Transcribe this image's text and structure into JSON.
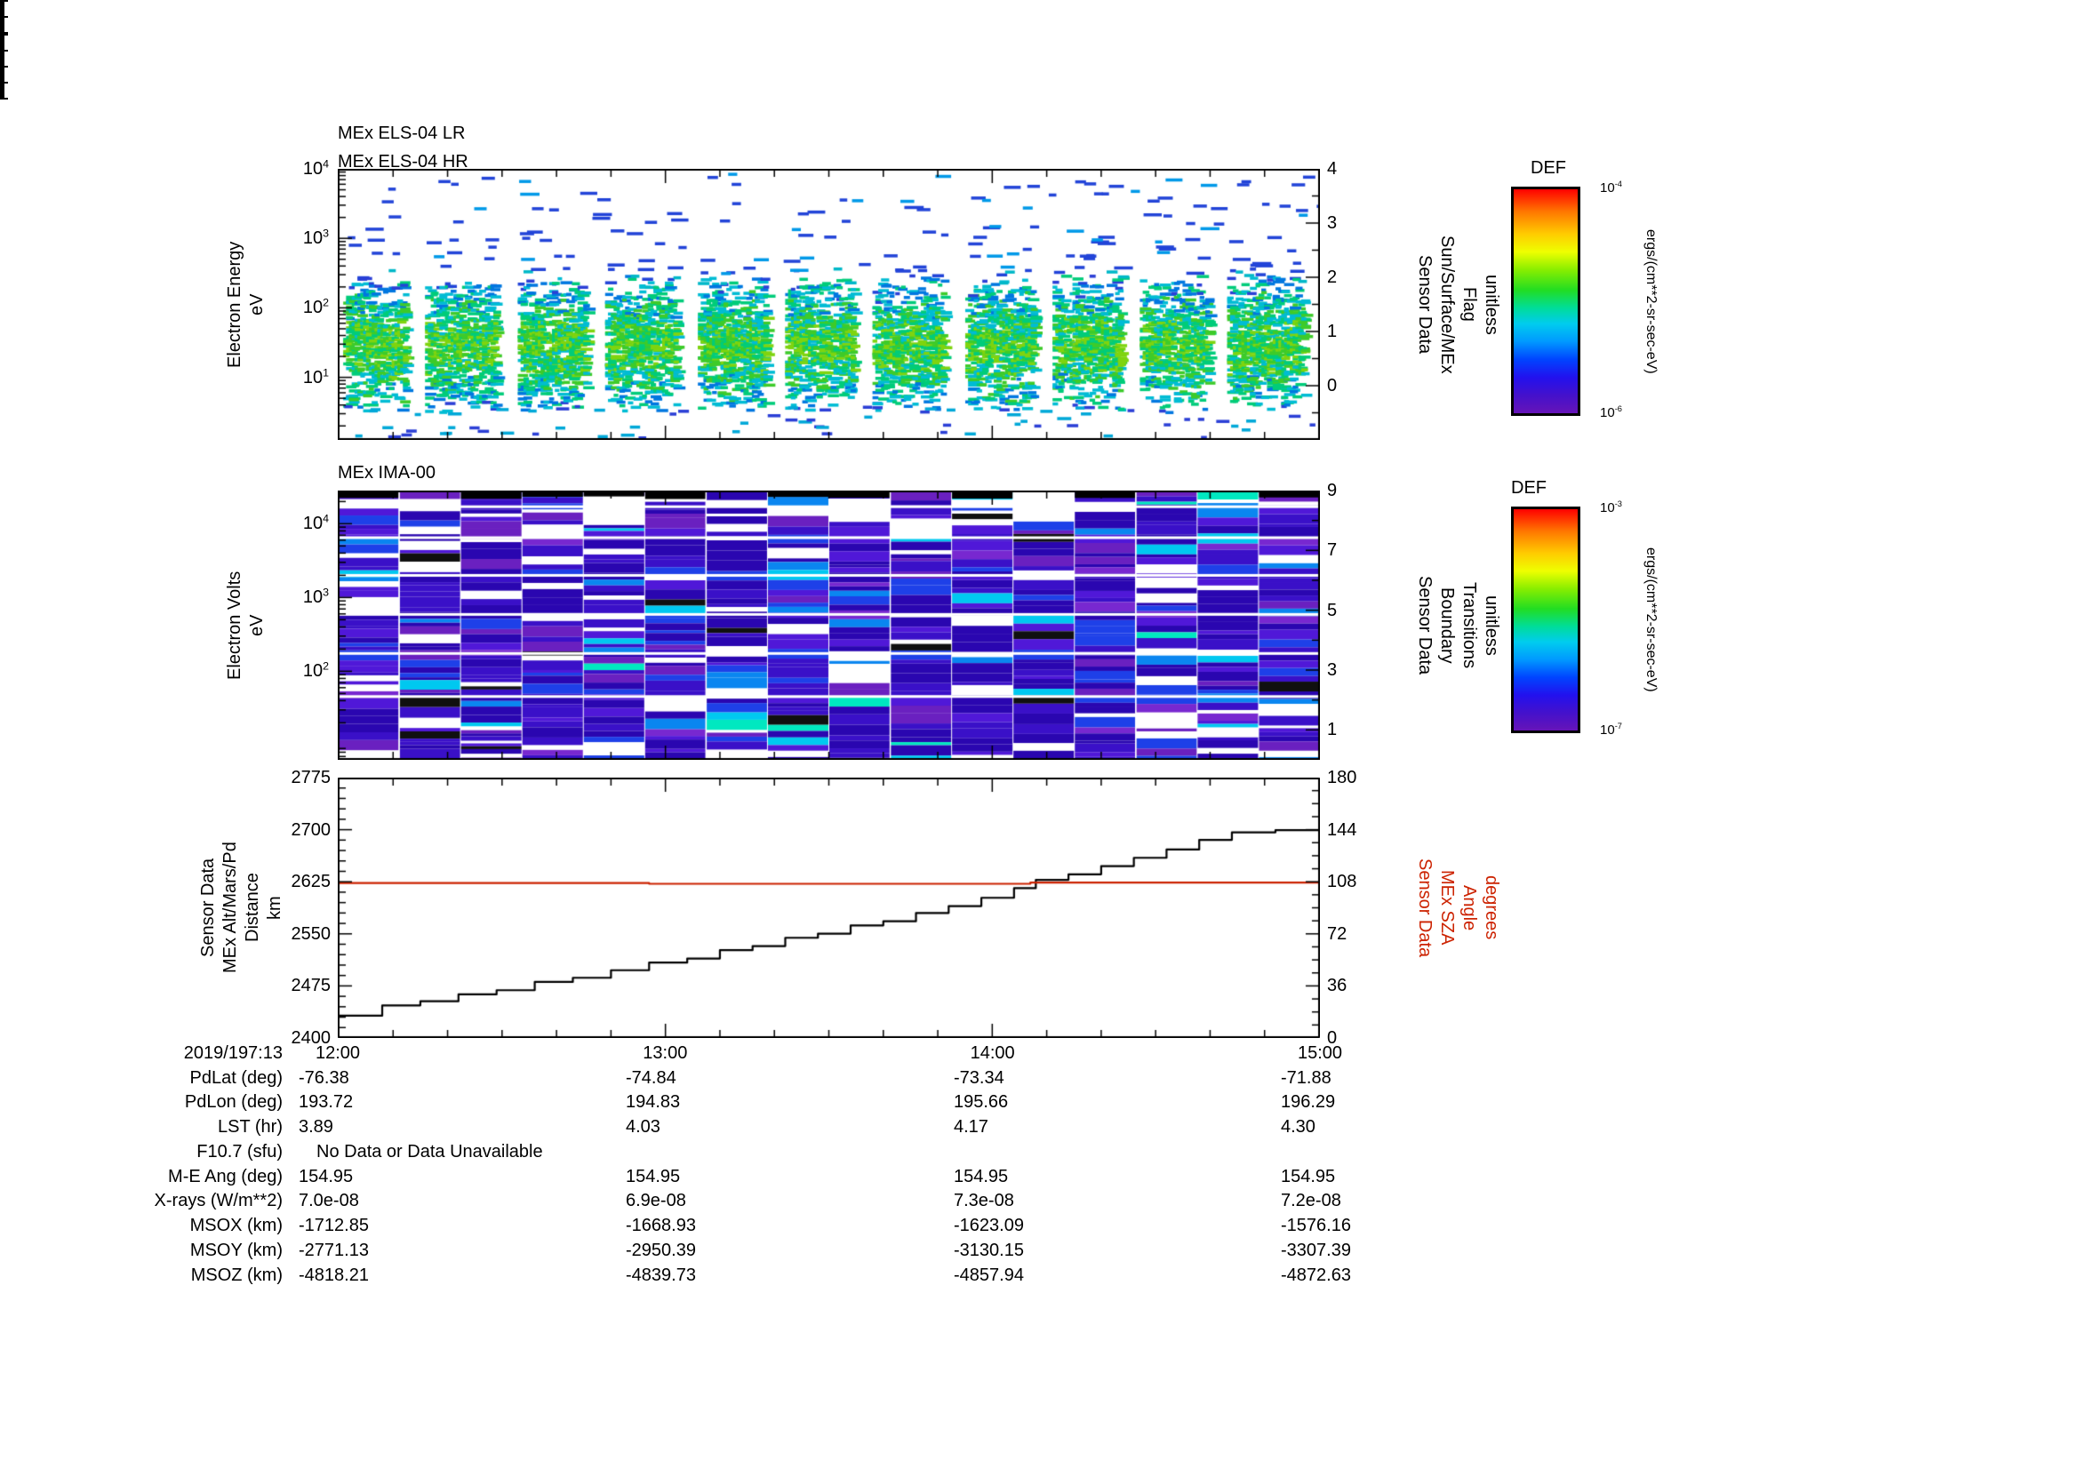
{
  "colors": {
    "background": "#ffffff",
    "foreground": "#000000",
    "sza_red": "#cc2200"
  },
  "els": {
    "title_lr": "MEx ELS-04 LR",
    "title_hr": "MEx ELS-04 HR",
    "left_label": [
      "Electron Energy",
      "eV"
    ],
    "right_label": [
      "Sensor Data",
      "Sun/Surface/MEx",
      "Flag",
      "unitless"
    ],
    "left_ticks": [
      {
        "base": "10",
        "exp": "4"
      },
      {
        "base": "10",
        "exp": "3"
      },
      {
        "base": "10",
        "exp": "2"
      },
      {
        "base": "10",
        "exp": "1"
      }
    ],
    "right_ticks": [
      "4",
      "3",
      "2",
      "1",
      "0"
    ]
  },
  "ima": {
    "title": "MEx IMA-00",
    "left_label": [
      "Electron Volts",
      "eV"
    ],
    "right_label": [
      "Sensor Data",
      "Boundary",
      "Transitions",
      "unitless"
    ],
    "left_ticks": [
      {
        "base": "10",
        "exp": "4"
      },
      {
        "base": "10",
        "exp": "3"
      },
      {
        "base": "10",
        "exp": "2"
      }
    ],
    "right_ticks": [
      "9",
      "7",
      "5",
      "3",
      "1"
    ]
  },
  "alt": {
    "left_label": [
      "Sensor Data",
      "MEx Alt/Mars/Pd",
      "Distance",
      "km"
    ],
    "right_label": [
      "Sensor Data",
      "MEx SZA",
      "Angle",
      "degrees"
    ],
    "left_ticks": [
      "2775",
      "2700",
      "2625",
      "2550",
      "2475",
      "2400"
    ],
    "right_ticks": [
      "180",
      "144",
      "108",
      "72",
      "36",
      "0"
    ]
  },
  "time_axis": {
    "date_label": "2019/197:13",
    "ticks": [
      "12:00",
      "13:00",
      "14:00",
      "15:00"
    ]
  },
  "colorbars": [
    {
      "title": "DEF",
      "units": "ergs/(cm**2-sr-sec-eV)",
      "top_label": {
        "base": "10",
        "exp": "-4"
      },
      "bottom_label": {
        "base": "10",
        "exp": "-6"
      },
      "log10_range": [
        -4,
        -6
      ],
      "gradient": [
        "#ff0000 0%",
        "#ff7700 10%",
        "#ffcc00 20%",
        "#eeff00 28%",
        "#88ee00 36%",
        "#22dd22 45%",
        "#00dd99 53%",
        "#00ccee 60%",
        "#0099ff 68%",
        "#0044ff 76%",
        "#2211ee 84%",
        "#4411cc 92%",
        "#6614b8 100%"
      ]
    },
    {
      "title": "DEF",
      "units": "ergs/(cm**2-sr-sec-eV)",
      "top_label": {
        "base": "10",
        "exp": "-3"
      },
      "bottom_label": {
        "base": "10",
        "exp": "-7"
      },
      "log10_range": [
        -3,
        -7
      ],
      "gradient": [
        "#ff0000 0%",
        "#ff7700 10%",
        "#ffcc00 20%",
        "#eeff00 28%",
        "#88ee00 36%",
        "#22dd22 45%",
        "#00dd99 53%",
        "#00ccee 60%",
        "#0099ff 68%",
        "#0044ff 76%",
        "#2211ee 84%",
        "#4411cc 92%",
        "#6614b8 100%"
      ]
    }
  ],
  "table": {
    "rows": [
      {
        "label": "PdLat (deg)",
        "values": [
          "-76.38",
          "-74.84",
          "-73.34",
          "-71.88"
        ]
      },
      {
        "label": "PdLon (deg)",
        "values": [
          "193.72",
          "194.83",
          "195.66",
          "196.29"
        ]
      },
      {
        "label": "LST (hr)",
        "values": [
          "3.89",
          "4.03",
          "4.17",
          "4.30"
        ]
      },
      {
        "label": "F10.7 (sfu)",
        "note": "No Data or Data Unavailable"
      },
      {
        "label": "M-E Ang (deg)",
        "values": [
          "154.95",
          "154.95",
          "154.95",
          "154.95"
        ]
      },
      {
        "label": "X-rays (W/m**2)",
        "values": [
          "7.0e-08",
          "6.9e-08",
          "7.3e-08",
          "7.2e-08"
        ]
      },
      {
        "label": "MSOX (km)",
        "values": [
          "-1712.85",
          "-1668.93",
          "-1623.09",
          "-1576.16"
        ]
      },
      {
        "label": "MSOY (km)",
        "values": [
          "-2771.13",
          "-2950.39",
          "-3130.15",
          "-3307.39"
        ]
      },
      {
        "label": "MSOZ (km)",
        "values": [
          "-4818.21",
          "-4839.73",
          "-4857.94",
          "-4872.63"
        ]
      }
    ]
  },
  "chart_data": [
    {
      "type": "heatmap",
      "title": "MEx ELS-04 LR / MEx ELS-04 HR",
      "ylabel": "Electron Energy eV",
      "y_scale": "log",
      "y_log10_range": [
        0.1,
        4.0
      ],
      "y_tick_values": [
        10,
        100,
        1000,
        10000
      ],
      "x_ticks": [
        "12:00",
        "13:00",
        "14:00",
        "15:00"
      ],
      "right_axis": {
        "label": "Sensor Data Sun/Surface/MEx Flag unitless",
        "range": [
          -1,
          4
        ],
        "tick_values": [
          4,
          3,
          2,
          1,
          0
        ]
      },
      "colorbar": {
        "title": "DEF",
        "units": "ergs/(cm**2-sr-sec-eV)",
        "log10_range": [
          -6,
          -4
        ]
      },
      "summary": "Dashed electron spectrogram: ~11 recurring dense bursts of green/cyan/blue flux between ~5 and 300 eV, sparse blue dashes from 300 eV to 10 keV, white background elsewhere",
      "render": {
        "seed": 7,
        "burst_windows_min": [
          [
            1,
            12
          ],
          [
            16,
            29
          ],
          [
            33,
            45
          ],
          [
            49,
            62
          ],
          [
            66,
            78
          ],
          [
            82,
            94
          ],
          [
            98,
            111
          ],
          [
            115,
            127
          ],
          [
            131,
            143
          ],
          [
            147,
            159
          ],
          [
            163,
            177
          ]
        ],
        "palette": [
          "#2b3fd6",
          "#0077e0",
          "#00bcd4",
          "#00cc7a",
          "#3ecb2a",
          "#7fd40f"
        ],
        "high_energy_colors": [
          "#2244d8",
          "#0099e8"
        ]
      }
    },
    {
      "type": "heatmap",
      "title": "MEx IMA-00",
      "ylabel": "Electron Volts eV",
      "y_scale": "log",
      "y_log10_range": [
        0.8,
        4.45
      ],
      "y_tick_values": [
        100,
        1000,
        10000
      ],
      "x_ticks": [
        "12:00",
        "13:00",
        "14:00",
        "15:00"
      ],
      "right_axis": {
        "label": "Sensor Data Boundary Transitions unitless",
        "range": [
          0,
          9
        ],
        "tick_values": [
          9,
          7,
          5,
          3,
          1
        ]
      },
      "colorbar": {
        "title": "DEF",
        "units": "ergs/(cm**2-sr-sec-eV)",
        "log10_range": [
          -7,
          -3
        ]
      },
      "summary": "Dense ion spectrogram in 16 column blocks dominated by dark blue/indigo/violet stripes with scattered cyan rows, occasional black rows and white data gaps",
      "render": {
        "seed": 11,
        "columns": 16,
        "gap_probability": 0.135,
        "palette": [
          [
            "#2a06b0",
            0.24
          ],
          [
            "#3a10c8",
            0.24
          ],
          [
            "#5018d8",
            0.14
          ],
          [
            "#1e40e8",
            0.09
          ],
          [
            "#6a20c0",
            0.08
          ],
          [
            "#0a86f0",
            0.05
          ],
          [
            "#00c8f0",
            0.04
          ],
          [
            "#7828d0",
            0.03
          ],
          [
            "#101010",
            0.025
          ],
          [
            "#00e8c0",
            0.015
          ]
        ],
        "white_bins_frac": [
          0.055,
          0.17,
          0.31,
          0.455,
          0.6,
          0.76
        ]
      }
    },
    {
      "type": "line",
      "x_ticks": [
        "12:00",
        "13:00",
        "14:00",
        "15:00"
      ],
      "x_range_minutes": [
        0,
        180
      ],
      "left_axis": {
        "label": "Sensor Data MEx Alt/Mars/Pd Distance km",
        "range": [
          2400,
          2775
        ],
        "tick_step": 75
      },
      "right_axis": {
        "label": "Sensor Data MEx SZA Angle degrees",
        "range": [
          0,
          180
        ],
        "tick_step": 36,
        "color": "#cc2200"
      },
      "series": [
        {
          "name": "MEx Alt/Mars/Pd Distance",
          "axis": "left",
          "color": "#000000",
          "style": "steps",
          "points": [
            [
              0,
              2431
            ],
            [
              8,
              2446
            ],
            [
              15,
              2452
            ],
            [
              22,
              2462
            ],
            [
              29,
              2468
            ],
            [
              36,
              2480
            ],
            [
              43,
              2486
            ],
            [
              50,
              2497
            ],
            [
              57,
              2508
            ],
            [
              64,
              2514
            ],
            [
              70,
              2526
            ],
            [
              76,
              2532
            ],
            [
              82,
              2544
            ],
            [
              88,
              2550
            ],
            [
              94,
              2562
            ],
            [
              100,
              2568
            ],
            [
              106,
              2580
            ],
            [
              112,
              2590
            ],
            [
              118,
              2602
            ],
            [
              124,
              2616
            ],
            [
              128,
              2628
            ],
            [
              134,
              2636
            ],
            [
              140,
              2648
            ],
            [
              146,
              2660
            ],
            [
              152,
              2672
            ],
            [
              158,
              2686
            ],
            [
              164,
              2697
            ],
            [
              172,
              2700
            ],
            [
              180,
              2700
            ]
          ]
        },
        {
          "name": "MEx SZA Angle",
          "axis": "right",
          "color": "#cc2200",
          "style": "steps",
          "points": [
            [
              0,
              107.3
            ],
            [
              57,
              107.3
            ],
            [
              57,
              106.7
            ],
            [
              122,
              106.7
            ],
            [
              127,
              107.6
            ],
            [
              180,
              107.6
            ]
          ]
        }
      ]
    }
  ]
}
